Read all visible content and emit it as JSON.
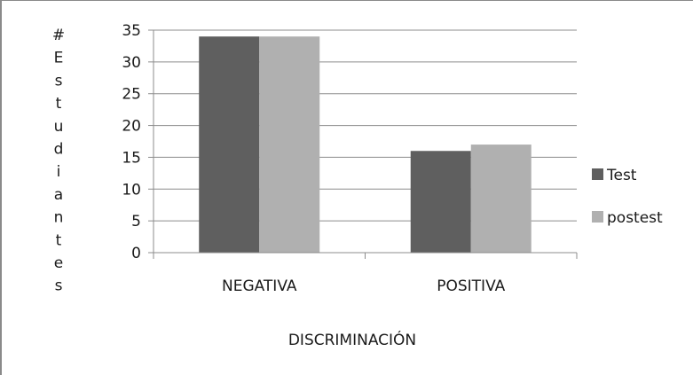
{
  "chart_data": {
    "type": "bar",
    "title": "",
    "xlabel": "DISCRIMINACIÓN",
    "ylabel": "#Estudiantes",
    "categories": [
      "NEGATIVA",
      "POSITIVA"
    ],
    "series": [
      {
        "name": "Test",
        "values": [
          34,
          16
        ],
        "color": "#5f5f5f"
      },
      {
        "name": "postest",
        "values": [
          34,
          17
        ],
        "color": "#b0b0b0"
      }
    ],
    "ylim": [
      0,
      35
    ],
    "yticks": [
      "0",
      "5",
      "10",
      "15",
      "20",
      "25",
      "30",
      "35"
    ],
    "grid": true,
    "legend": "right"
  }
}
